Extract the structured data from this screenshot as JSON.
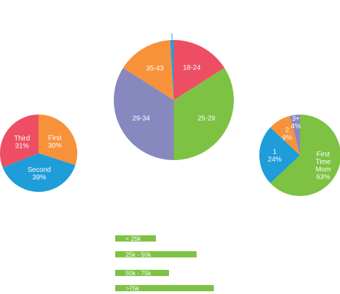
{
  "chart_data": [
    {
      "type": "pie",
      "slices": [
        {
          "label": "18-24",
          "value": 16,
          "color": "#EE4E63",
          "lines": [
            "18-24"
          ]
        },
        {
          "label": "25-29",
          "value": 34,
          "color": "#7DC242",
          "lines": [
            "25-29"
          ]
        },
        {
          "label": "29-34",
          "value": 34,
          "color": "#8788BE",
          "lines": [
            "29-34"
          ]
        },
        {
          "label": "35-43",
          "value": 15,
          "color": "#F7923A",
          "lines": [
            "35-43"
          ]
        },
        {
          "label": "",
          "value": 1,
          "color": "#2E9CD8",
          "lines": []
        }
      ]
    },
    {
      "type": "pie",
      "slices": [
        {
          "label": "First",
          "value": 30,
          "color": "#F7923A",
          "lines": [
            "First",
            "30%"
          ]
        },
        {
          "label": "Second",
          "value": 39,
          "color": "#1E9DD8",
          "lines": [
            "Second",
            "39%"
          ]
        },
        {
          "label": "Third",
          "value": 31,
          "color": "#EE4E63",
          "lines": [
            "Third",
            "31%"
          ]
        }
      ]
    },
    {
      "type": "pie",
      "slices": [
        {
          "label": "First Time Mom",
          "value": 63,
          "color": "#7DC242",
          "lines": [
            "First",
            "Time",
            "Mom",
            "63%"
          ]
        },
        {
          "label": "1",
          "value": 24,
          "color": "#1E9DD8",
          "lines": [
            "1",
            "24%"
          ]
        },
        {
          "label": "2",
          "value": 9,
          "color": "#F7923A",
          "lines": [
            "2",
            "9%"
          ]
        },
        {
          "label": "3+",
          "value": 4,
          "color": "#8788BE",
          "lines": [
            "3+",
            "4%"
          ]
        }
      ]
    },
    {
      "type": "bar",
      "orientation": "horizontal",
      "categories": [
        "< 25k",
        "25k - 50k",
        "50k - 75k",
        ">75k"
      ],
      "values": [
        59,
        118,
        78,
        143
      ],
      "color": "#7DC242"
    }
  ]
}
